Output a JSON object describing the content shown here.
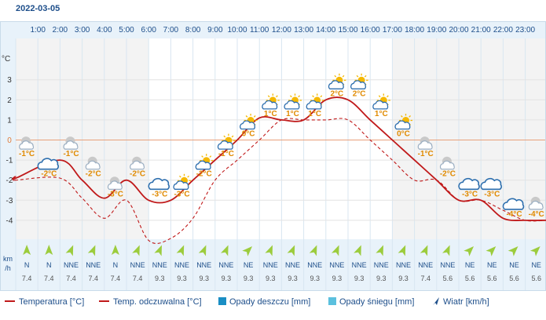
{
  "date": "2022-03-05",
  "chart_data": {
    "type": "line",
    "x": [
      "1:00",
      "2:00",
      "3:00",
      "4:00",
      "5:00",
      "6:00",
      "7:00",
      "8:00",
      "9:00",
      "10:00",
      "11:00",
      "12:00",
      "13:00",
      "14:00",
      "15:00",
      "16:00",
      "17:00",
      "18:00",
      "19:00",
      "20:00",
      "21:00",
      "22:00",
      "23:00"
    ],
    "ylabel": "°C",
    "yticks": [
      3,
      2,
      1,
      0,
      -1,
      -2,
      -3,
      -4
    ],
    "ylim": [
      -5.2,
      4.9
    ],
    "series": [
      {
        "name": "Temperatura [°C]",
        "values": [
          -1.9,
          -1.0,
          -2.0,
          -2.9,
          -2.0,
          -3.0,
          -3.0,
          -2.0,
          -1.0,
          0.0,
          1.1,
          1.0,
          1.0,
          2.0,
          2.0,
          1.0,
          0.0,
          -1.0,
          -2.0,
          -3.0,
          -3.0,
          -3.9,
          -4.0
        ],
        "color": "#c0191a",
        "style": "solid"
      },
      {
        "name": "Temp. odczuwalna [°C]",
        "values": [
          -2.0,
          -1.9,
          -2.9,
          -3.9,
          -3.0,
          -5.0,
          -4.9,
          -3.9,
          -2.0,
          -1.0,
          0.0,
          1.0,
          1.0,
          1.0,
          1.0,
          0.0,
          -1.0,
          -2.0,
          -2.0,
          -3.0,
          -3.0,
          -3.5,
          -4.0
        ],
        "color": "#c0191a",
        "style": "dashed"
      }
    ],
    "point_temps": [
      "-1°C",
      "-2°C",
      "-1°C",
      "-2°C",
      "-3°C",
      "-2°C",
      "-3°C",
      "-3°C",
      "-2°C",
      "-1°C",
      "0°C",
      "1°C",
      "1°C",
      "1°C",
      "2°C",
      "2°C",
      "1°C",
      "0°C",
      "-1°C",
      "-2°C",
      "-3°C",
      "-3°C",
      "-4°C",
      "-4°C"
    ],
    "point_icons": [
      "cloud-night",
      "cloud",
      "cloud-night",
      "cloud-night",
      "cloud-night",
      "cloud-night",
      "cloud",
      "sun-cloud",
      "sun-cloud",
      "sun-cloud",
      "sun-cloud",
      "sun-cloud",
      "sun-cloud",
      "sun-cloud",
      "sun-cloud",
      "sun-cloud",
      "sun-cloud",
      "sun-cloud",
      "cloud-night",
      "cloud-night",
      "cloud",
      "cloud",
      "cloud",
      "cloud-night"
    ],
    "wind_directions": [
      "N",
      "N",
      "NNE",
      "NNE",
      "N",
      "NNE",
      "NNE",
      "NNE",
      "NNE",
      "NNE",
      "NE",
      "NNE",
      "NNE",
      "NNE",
      "NNE",
      "NNE",
      "NNE",
      "NNE",
      "NNE",
      "NNE",
      "NE",
      "NE",
      "NE",
      "NE"
    ],
    "wind_speeds": [
      "7.4",
      "7.4",
      "7.4",
      "7.4",
      "7.4",
      "7.4",
      "9.3",
      "9.3",
      "9.3",
      "9.3",
      "9.3",
      "9.3",
      "9.3",
      "9.3",
      "9.3",
      "9.3",
      "9.3",
      "9.3",
      "7.4",
      "5.6",
      "5.6",
      "5.6",
      "5.6",
      "5.6"
    ],
    "wind_unit": "km/h",
    "legend": [
      {
        "label": "Temperatura [°C]",
        "kind": "line",
        "color": "#c0191a"
      },
      {
        "label": "Temp. odczuwalna [°C]",
        "kind": "line",
        "color": "#c0191a"
      },
      {
        "label": "Opady deszczu [mm]",
        "kind": "box",
        "color": "#1a8ec4"
      },
      {
        "label": "Opady śniegu [mm]",
        "kind": "box",
        "color": "#5bc0de"
      },
      {
        "label": "Wiatr [km/h]",
        "kind": "arrow",
        "color": "#1d4e8a"
      }
    ]
  }
}
